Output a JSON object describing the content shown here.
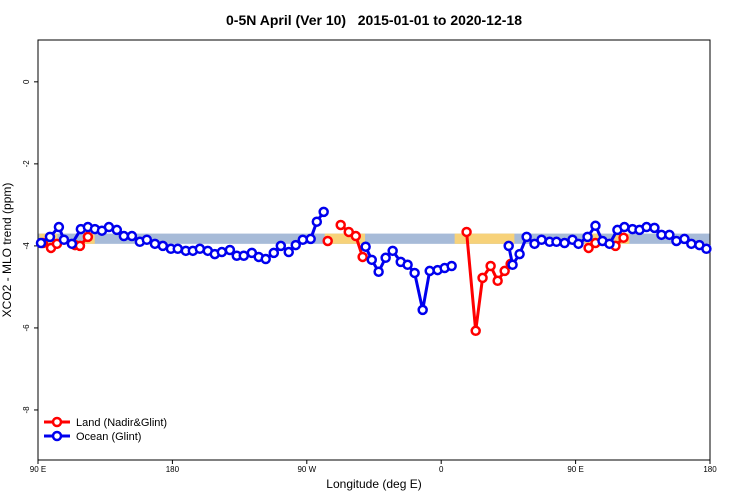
{
  "chart_data": {
    "type": "line",
    "title": "0-5N April (Ver 10)   2015-01-01 to 2020-12-18",
    "x_label": "Longitude (deg E)",
    "y_label": "XCO2 - MLO trend (ppm)",
    "xlim": [
      90,
      540
    ],
    "xticks": [
      {
        "value": 90,
        "label": "90 E"
      },
      180,
      {
        "value": 270,
        "label": "90 W"
      },
      {
        "value": 360,
        "label": "0"
      },
      {
        "value": 450,
        "label": "90 E"
      },
      {
        "value": 540,
        "label": "180"
      }
    ],
    "ylim": [
      -9.22,
      1.02
    ],
    "yticks": [
      -8,
      -6,
      -4,
      -2,
      0
    ],
    "legend": "bottom-left",
    "band_range": [
      -3.95,
      -3.7
    ],
    "bands": [
      {
        "color": "#a7bbd8",
        "ranges": [
          [
            90,
            540
          ]
        ]
      },
      {
        "color": "#f7d27a",
        "ranges": [
          [
            91,
            103
          ],
          [
            121,
            128
          ],
          [
            282,
            309
          ],
          [
            369,
            409
          ],
          [
            456,
            466
          ],
          [
            476,
            486
          ]
        ]
      }
    ],
    "series": [
      {
        "name": "Land (Nadir&Glint)",
        "color": "#ff0000",
        "x": [
          93.3,
          98.7,
          102.7,
          null,
          114.8,
          118.1,
          123.4,
          null,
          284.0,
          null,
          292.7,
          298.1,
          302.8,
          307.4,
          null,
          377.0,
          383.1,
          387.7,
          393.1,
          397.8,
          402.5,
          406.5,
          null,
          458.7,
          463.3,
          null,
          476.7,
          482.1
        ],
        "values": [
          -3.93,
          -4.05,
          -3.95,
          null,
          -3.98,
          -4.0,
          -3.78,
          null,
          -3.88,
          null,
          -3.49,
          -3.66,
          -3.76,
          -4.27,
          null,
          -3.66,
          -6.07,
          -4.78,
          -4.49,
          -4.85,
          -4.61,
          -4.44,
          null,
          -4.05,
          -3.93,
          null,
          -4.0,
          -3.8
        ]
      },
      {
        "name": "Ocean (Glint)",
        "color": "#0000ee",
        "x": [
          92.0,
          98.0,
          104.0,
          107.4,
          112.7,
          118.7,
          123.4,
          128.1,
          132.8,
          137.5,
          142.8,
          147.5,
          152.9,
          158.2,
          162.9,
          168.3,
          173.6,
          179.0,
          183.6,
          189.0,
          193.7,
          198.4,
          203.7,
          208.4,
          213.1,
          218.5,
          223.1,
          227.8,
          233.2,
          237.8,
          242.5,
          247.9,
          252.6,
          257.9,
          262.6,
          267.3,
          272.6,
          276.7,
          281.3,
          null,
          309.4,
          313.5,
          318.1,
          322.8,
          327.5,
          332.9,
          337.5,
          342.2,
          347.6,
          352.3,
          357.6,
          362.3,
          367.0,
          null,
          405.2,
          407.8,
          412.5,
          417.2,
          422.5,
          427.2,
          432.6,
          437.2,
          442.6,
          447.9,
          451.9,
          458.0,
          463.3,
          468.0,
          472.7,
          478.0,
          482.7,
          488.1,
          492.8,
          497.5,
          502.8,
          507.5,
          512.8,
          517.5,
          522.9,
          527.5,
          532.9,
          537.6
        ],
        "values": [
          -3.93,
          -3.78,
          -3.54,
          -3.85,
          -3.95,
          -3.59,
          -3.54,
          -3.59,
          -3.63,
          -3.54,
          -3.61,
          -3.76,
          -3.76,
          -3.9,
          -3.85,
          -3.95,
          -4.0,
          -4.07,
          -4.07,
          -4.12,
          -4.12,
          -4.07,
          -4.12,
          -4.2,
          -4.15,
          -4.1,
          -4.24,
          -4.24,
          -4.17,
          -4.27,
          -4.32,
          -4.17,
          -4.0,
          -4.15,
          -3.98,
          -3.85,
          -3.83,
          -3.41,
          -3.17,
          null,
          -4.02,
          -4.34,
          -4.63,
          -4.29,
          -4.12,
          -4.39,
          -4.46,
          -4.66,
          -5.56,
          -4.61,
          -4.59,
          -4.54,
          -4.49,
          null,
          -4.0,
          -4.46,
          -4.2,
          -3.78,
          -3.95,
          -3.85,
          -3.9,
          -3.9,
          -3.93,
          -3.85,
          -3.95,
          -3.78,
          -3.51,
          -3.88,
          -3.95,
          -3.61,
          -3.54,
          -3.59,
          -3.61,
          -3.54,
          -3.56,
          -3.73,
          -3.73,
          -3.88,
          -3.83,
          -3.95,
          -3.98,
          -4.07
        ]
      }
    ]
  }
}
